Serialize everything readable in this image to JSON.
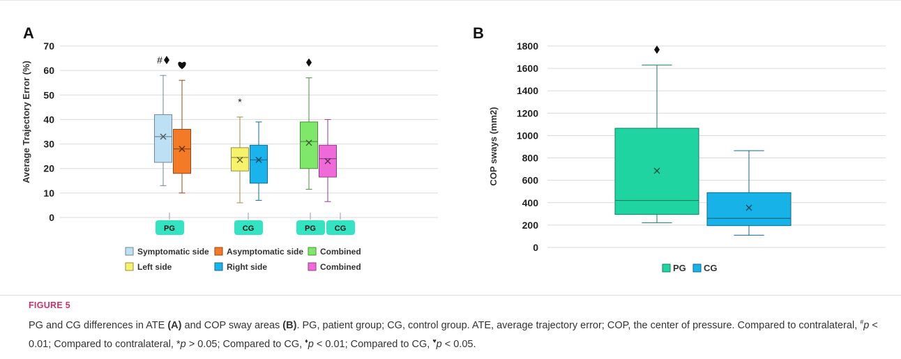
{
  "figure": {
    "label": "FIGURE 5",
    "caption": {
      "p1": "PG and CG differences in ATE ",
      "p2": "(A)",
      "p3": " and COP sway areas ",
      "p4": "(B)",
      "p5": ". PG, patient group; CG, control group. ATE, average trajectory error; COP, the center of pressure. Compared to contralateral, ",
      "s1": "#",
      "p6": "p",
      "p7": " < 0.01; Compared to contralateral, *",
      "p8": "p",
      "p9": " > 0.05; Compared to CG, ",
      "s2": "♦",
      "p10": "p",
      "p11": " < 0.01; Compared to CG, ",
      "s3": "♥",
      "p12": "p",
      "p13": " < 0.05."
    }
  },
  "colors": {
    "symptomatic": "#bde0f4",
    "asymptomatic": "#f47a27",
    "combined_pg": "#7fe86a",
    "left": "#f7f26c",
    "right": "#1ab4ec",
    "combined_cg": "#ef6ad8",
    "panel_b_pg": "#1fd4a0",
    "panel_b_cg": "#16b2e8",
    "group_tag": "#33e3c1"
  },
  "chart_data": [
    {
      "type": "box",
      "panel_label": "A",
      "ylabel": "Average Trajectory Error (%)",
      "ylim": [
        0,
        70
      ],
      "yticks": [
        0,
        10,
        20,
        30,
        40,
        50,
        60,
        70
      ],
      "grid": true,
      "group_tags": [
        "PG",
        "CG",
        "PG",
        "CG"
      ],
      "legend": {
        "placement": "bottom",
        "entries": [
          {
            "label": "Symptomatic side",
            "color": "#bde0f4"
          },
          {
            "label": "Asymptomatic side",
            "color": "#f47a27"
          },
          {
            "label": "Combined",
            "color": "#7fe86a"
          },
          {
            "label": "Left side",
            "color": "#f7f26c"
          },
          {
            "label": "Right side",
            "color": "#1ab4ec"
          },
          {
            "label": "Combined",
            "color": "#ef6ad8"
          }
        ]
      },
      "series": [
        {
          "name": "Symptomatic side",
          "color": "#bde0f4",
          "min": 13,
          "q1": 22.5,
          "median": 33,
          "q3": 42,
          "max": 58,
          "mean": 33,
          "annotation": "#♦"
        },
        {
          "name": "Asymptomatic side",
          "color": "#f47a27",
          "min": 10,
          "q1": 18,
          "median": 28,
          "q3": 36,
          "max": 56,
          "mean": 28,
          "annotation": "♥"
        },
        {
          "name": "Left side",
          "color": "#f7f26c",
          "min": 6,
          "q1": 19,
          "median": 24.5,
          "q3": 28.5,
          "max": 41,
          "mean": 23.5,
          "annotation": "*"
        },
        {
          "name": "Right side",
          "color": "#1ab4ec",
          "min": 7,
          "q1": 14,
          "median": 23.5,
          "q3": 29.5,
          "max": 39,
          "mean": 23.5,
          "annotation": ""
        },
        {
          "name": "Combined",
          "color": "#7fe86a",
          "min": 11.5,
          "q1": 20,
          "median": 31,
          "q3": 39,
          "max": 57,
          "mean": 30.5,
          "annotation": "♦"
        },
        {
          "name": "Combined",
          "color": "#ef6ad8",
          "min": 6.5,
          "q1": 16.5,
          "median": 24,
          "q3": 29.5,
          "max": 40,
          "mean": 23,
          "annotation": ""
        }
      ]
    },
    {
      "type": "box",
      "panel_label": "B",
      "ylabel": "COP sways (mm2)",
      "ylim": [
        0,
        1800
      ],
      "yticks": [
        0,
        200,
        400,
        600,
        800,
        1000,
        1200,
        1400,
        1600,
        1800
      ],
      "grid": true,
      "legend": {
        "placement": "bottom",
        "entries": [
          {
            "label": "PG",
            "color": "#1fd4a0"
          },
          {
            "label": "CG",
            "color": "#16b2e8"
          }
        ]
      },
      "series": [
        {
          "name": "PG",
          "color": "#1fd4a0",
          "min": 220,
          "q1": 295,
          "median": 420,
          "q3": 1065,
          "max": 1630,
          "mean": 685,
          "annotation": "♦"
        },
        {
          "name": "CG",
          "color": "#16b2e8",
          "min": 110,
          "q1": 195,
          "median": 260,
          "q3": 490,
          "max": 865,
          "mean": 355,
          "annotation": ""
        }
      ]
    }
  ]
}
